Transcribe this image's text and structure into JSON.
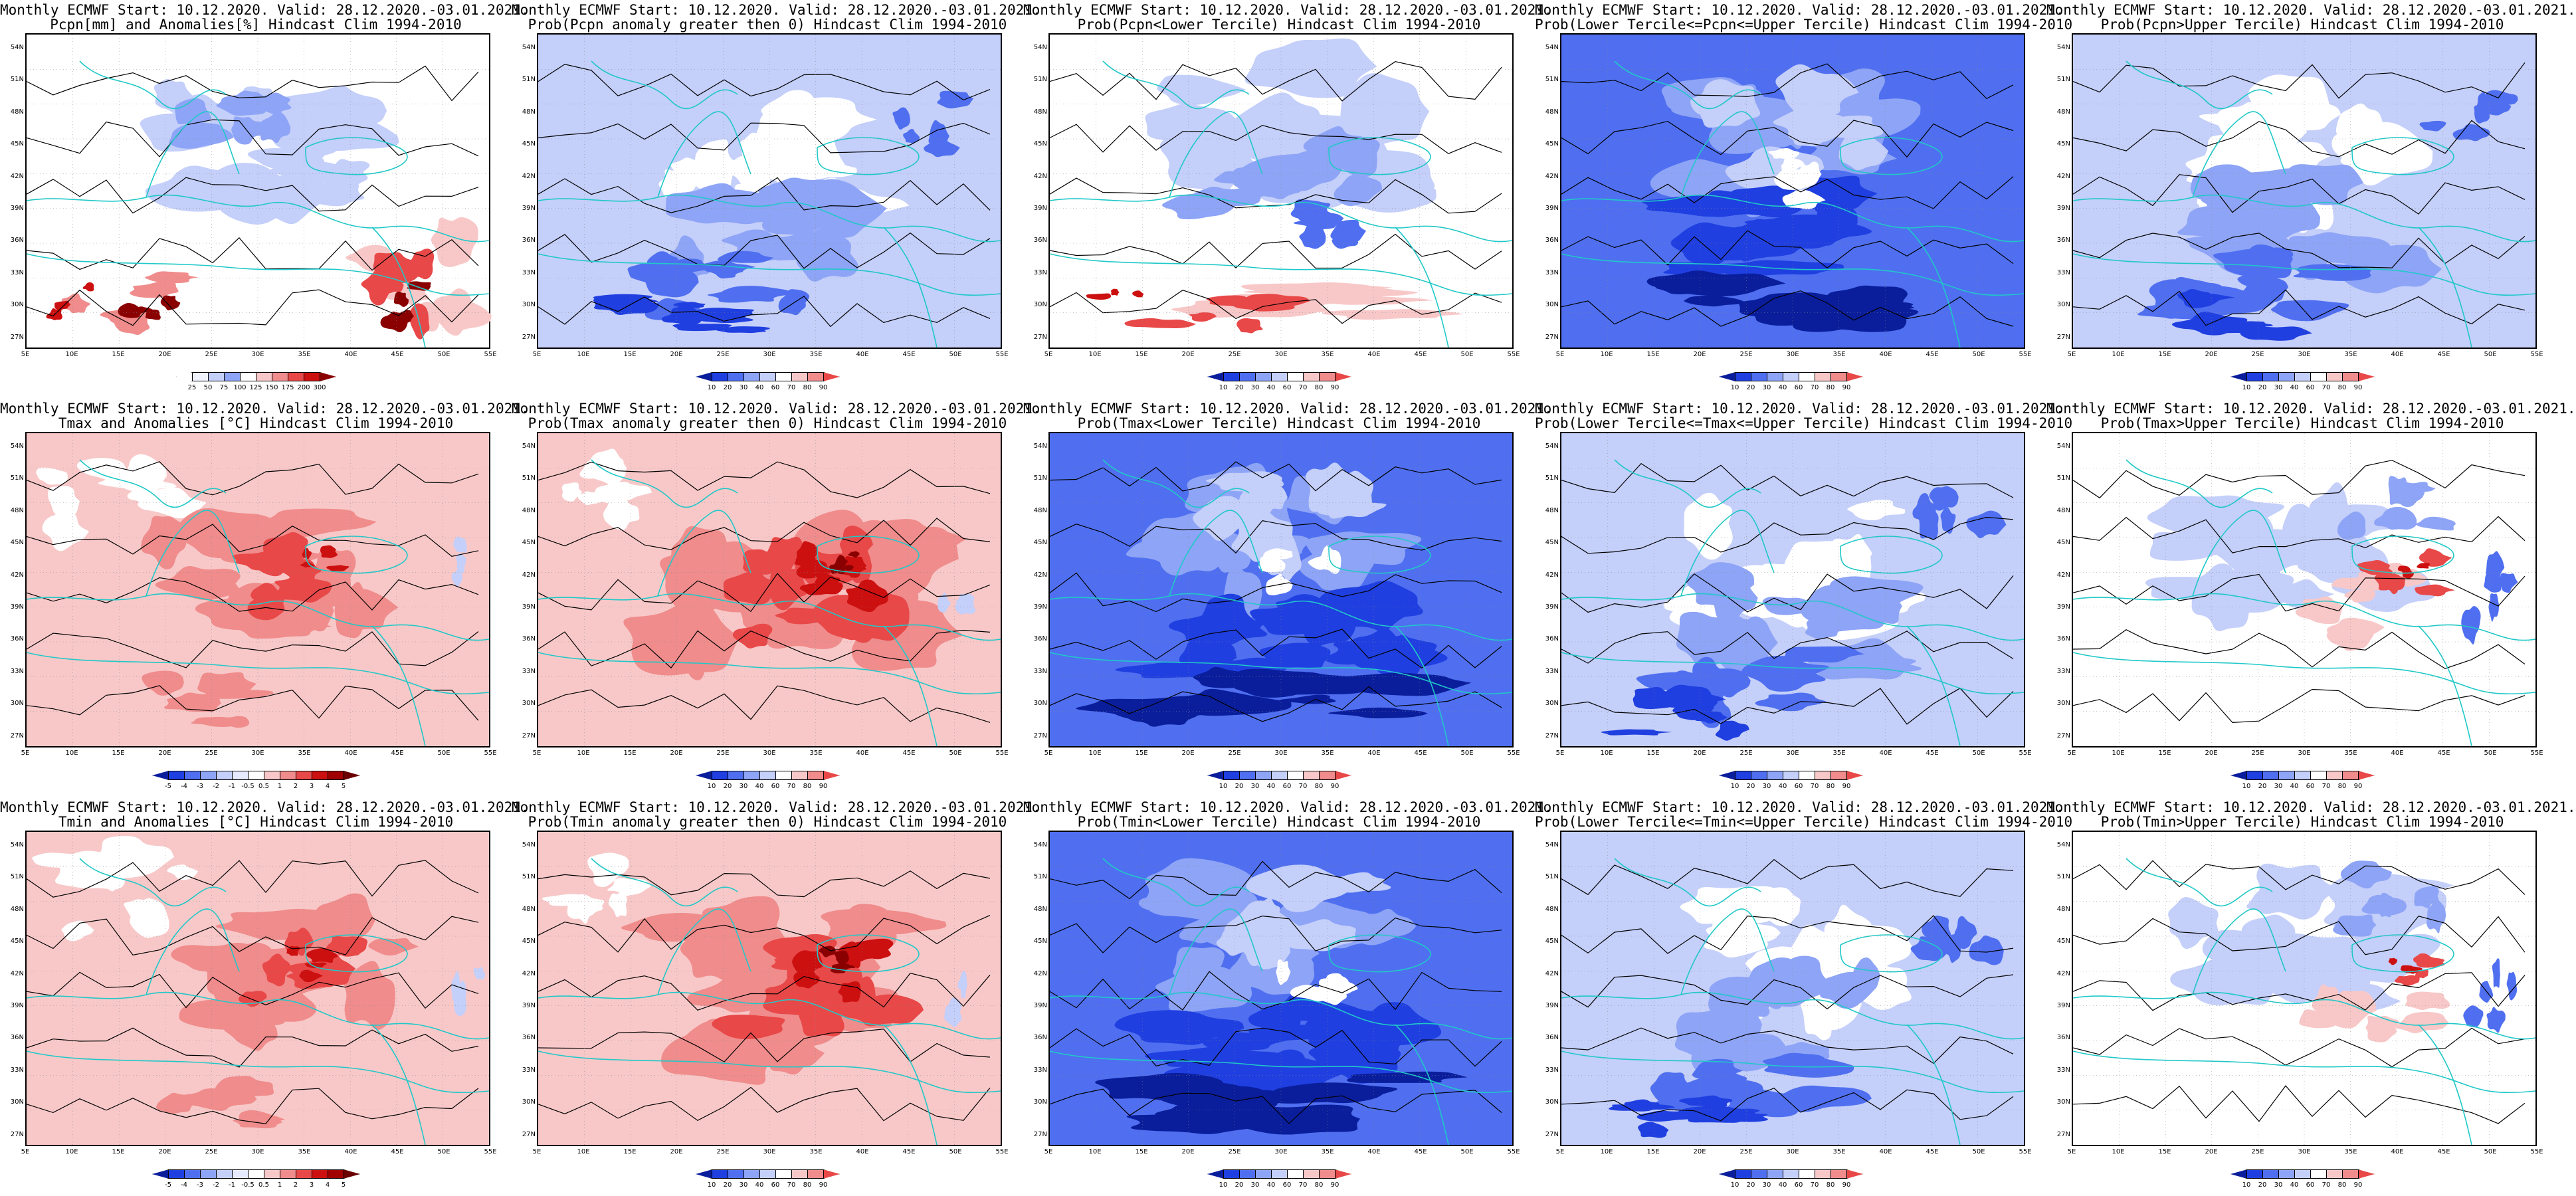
{
  "window_title": "Monthly ECMWF",
  "colors": {
    "blue_scale": [
      "#0a1e9c",
      "#1f3fe0",
      "#4f6ff0",
      "#8ea4f6",
      "#c4cffa",
      "#ffffff"
    ],
    "red_scale": [
      "#ffffff",
      "#f8c8c8",
      "#f08c8c",
      "#e84848",
      "#cc1010",
      "#8a0000"
    ],
    "coast": "#20c8c8",
    "contour": "#000000"
  },
  "lat_labels": [
    "54N",
    "51N",
    "48N",
    "45N",
    "42N",
    "39N",
    "36N",
    "33N",
    "30N",
    "27N"
  ],
  "lon_labels": [
    "5E",
    "10E",
    "15E",
    "20E",
    "25E",
    "30E",
    "35E",
    "40E",
    "45E",
    "50E",
    "55E"
  ],
  "rows": [
    {
      "variable": "Pcpn",
      "panels": [
        {
          "title1": "Monthly ECMWF Start: 10.12.2020. Valid: 28.12.2020.-03.01.2021.",
          "title2": "Pcpn[mm] and Anomalies[%] Hindcast Clim 1994-2010",
          "scheme": "pcpn",
          "cbar": [
            "25",
            "50",
            "75",
            "100",
            "125",
            "150",
            "175",
            "200",
            "300"
          ]
        },
        {
          "title1": "Monthly ECMWF Start: 10.12.2020. Valid: 28.12.2020.-03.01.2021.",
          "title2": "Prob(Pcpn anomaly greater then 0) Hindcast Clim 1994-2010",
          "scheme": "prob_low",
          "cbar": [
            "10",
            "20",
            "30",
            "40",
            "60",
            "70",
            "80",
            "90"
          ]
        },
        {
          "title1": "Monthly ECMWF Start: 10.12.2020. Valid: 28.12.2020.-03.01.2021.",
          "title2": "Prob(Pcpn<Lower Tercile) Hindcast Clim 1994-2010",
          "scheme": "prob_mixed",
          "cbar": [
            "10",
            "20",
            "30",
            "40",
            "60",
            "70",
            "80",
            "90"
          ]
        },
        {
          "title1": "Monthly ECMWF Start: 10.12.2020. Valid: 28.12.2020.-03.01.2021.",
          "title2": "Prob(Lower Tercile<=Pcpn<=Upper Tercile) Hindcast Clim 1994-2010",
          "scheme": "prob_vlow",
          "cbar": [
            "10",
            "20",
            "30",
            "40",
            "60",
            "70",
            "80",
            "90"
          ]
        },
        {
          "title1": "Monthly ECMWF Start: 10.12.2020. Valid: 28.12.2020.-03.01.2021.",
          "title2": "Prob(Pcpn>Upper Tercile) Hindcast Clim 1994-2010",
          "scheme": "prob_low",
          "cbar": [
            "10",
            "20",
            "30",
            "40",
            "60",
            "70",
            "80",
            "90"
          ]
        }
      ]
    },
    {
      "variable": "Tmax",
      "panels": [
        {
          "title1": "Monthly ECMWF Start: 10.12.2020. Valid: 28.12.2020.-03.01.2021.",
          "title2": "Tmax and Anomalies [°C] Hindcast Clim 1994-2010",
          "scheme": "anom_red",
          "cbar": [
            "-5",
            "-4",
            "-3",
            "-2",
            "-1",
            "-0.5",
            "0.5",
            "1",
            "2",
            "3",
            "4",
            "5"
          ]
        },
        {
          "title1": "Monthly ECMWF Start: 10.12.2020. Valid: 28.12.2020.-03.01.2021.",
          "title2": "Prob(Tmax anomaly greater then 0) Hindcast Clim 1994-2010",
          "scheme": "prob_high",
          "cbar": [
            "10",
            "20",
            "30",
            "40",
            "60",
            "70",
            "80",
            "90"
          ]
        },
        {
          "title1": "Monthly ECMWF Start: 10.12.2020. Valid: 28.12.2020.-03.01.2021.",
          "title2": "Prob(Tmax<Lower Tercile) Hindcast Clim 1994-2010",
          "scheme": "prob_vlow",
          "cbar": [
            "10",
            "20",
            "30",
            "40",
            "60",
            "70",
            "80",
            "90"
          ]
        },
        {
          "title1": "Monthly ECMWF Start: 10.12.2020. Valid: 28.12.2020.-03.01.2021.",
          "title2": "Prob(Lower Tercile<=Tmax<=Upper Tercile) Hindcast Clim 1994-2010",
          "scheme": "prob_low",
          "cbar": [
            "10",
            "20",
            "30",
            "40",
            "60",
            "70",
            "80",
            "90"
          ]
        },
        {
          "title1": "Monthly ECMWF Start: 10.12.2020. Valid: 28.12.2020.-03.01.2021.",
          "title2": "Prob(Tmax>Upper Tercile) Hindcast Clim 1994-2010",
          "scheme": "prob_mixed2",
          "cbar": [
            "10",
            "20",
            "30",
            "40",
            "60",
            "70",
            "80",
            "90"
          ]
        }
      ]
    },
    {
      "variable": "Tmin",
      "panels": [
        {
          "title1": "Monthly ECMWF Start: 10.12.2020. Valid: 28.12.2020.-03.01.2021.",
          "title2": "Tmin and Anomalies [°C] Hindcast Clim 1994-2010",
          "scheme": "anom_red",
          "cbar": [
            "-5",
            "-4",
            "-3",
            "-2",
            "-1",
            "-0.5",
            "0.5",
            "1",
            "2",
            "3",
            "4",
            "5"
          ]
        },
        {
          "title1": "Monthly ECMWF Start: 10.12.2020. Valid: 28.12.2020.-03.01.2021.",
          "title2": "Prob(Tmin anomaly greater then 0) Hindcast Clim 1994-2010",
          "scheme": "prob_high",
          "cbar": [
            "10",
            "20",
            "30",
            "40",
            "60",
            "70",
            "80",
            "90"
          ]
        },
        {
          "title1": "Monthly ECMWF Start: 10.12.2020. Valid: 28.12.2020.-03.01.2021.",
          "title2": "Prob(Tmin<Lower Tercile) Hindcast Clim 1994-2010",
          "scheme": "prob_vlow",
          "cbar": [
            "10",
            "20",
            "30",
            "40",
            "60",
            "70",
            "80",
            "90"
          ]
        },
        {
          "title1": "Monthly ECMWF Start: 10.12.2020. Valid: 28.12.2020.-03.01.2021.",
          "title2": "Prob(Lower Tercile<=Tmin<=Upper Tercile) Hindcast Clim 1994-2010",
          "scheme": "prob_low",
          "cbar": [
            "10",
            "20",
            "30",
            "40",
            "60",
            "70",
            "80",
            "90"
          ]
        },
        {
          "title1": "Monthly ECMWF Start: 10.12.2020. Valid: 28.12.2020.-03.01.2021.",
          "title2": "Prob(Tmin>Upper Tercile) Hindcast Clim 1994-2010",
          "scheme": "prob_mixed2",
          "cbar": [
            "10",
            "20",
            "30",
            "40",
            "60",
            "70",
            "80",
            "90"
          ]
        }
      ]
    }
  ]
}
